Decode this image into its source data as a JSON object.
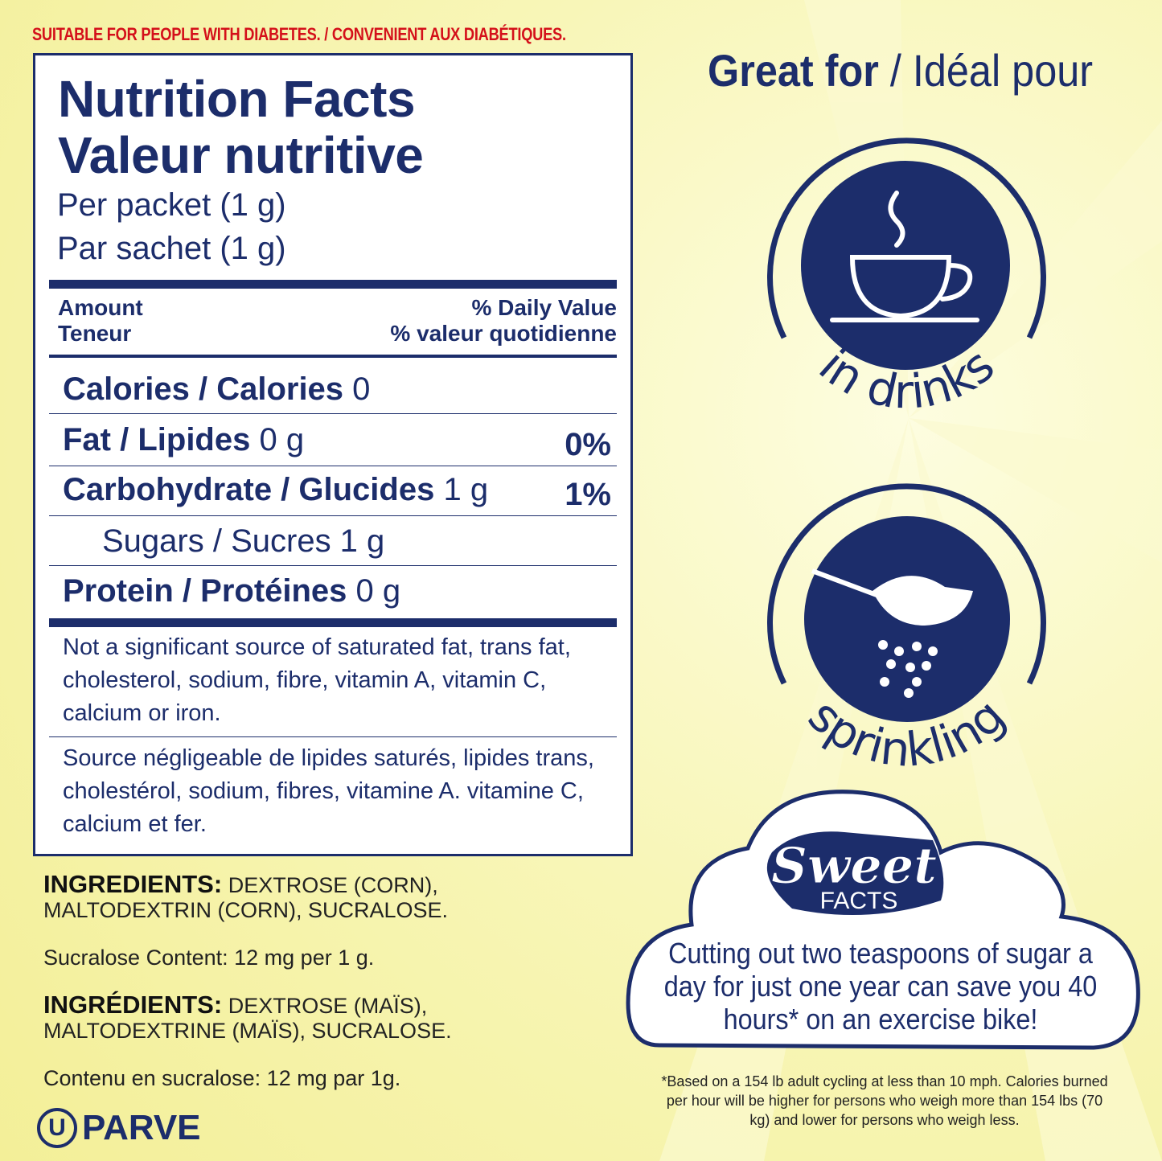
{
  "banner": "SUITABLE FOR PEOPLE WITH DIABETES. / CONVENIENT AUX DIABÉTIQUES.",
  "label": {
    "title_en": "Nutrition Facts",
    "title_fr": "Valeur nutritive",
    "serving_en": "Per packet (1 g)",
    "serving_fr": "Par sachet (1 g)",
    "amount_en": "Amount",
    "amount_fr": "Teneur",
    "dv_en": "% Daily Value",
    "dv_fr": "% valeur quotidienne",
    "rows": [
      {
        "name": "Calories / Calories",
        "amount": "0",
        "dv": ""
      },
      {
        "name": "Fat / Lipides",
        "amount": "0 g",
        "dv": "0%"
      },
      {
        "name": "Carbohydrate / Glucides",
        "amount": "1 g",
        "dv": "1%"
      },
      {
        "name": "Sugars / Sucres 1 g",
        "amount": "",
        "dv": ""
      },
      {
        "name": "Protein / Protéines",
        "amount": "0 g",
        "dv": ""
      }
    ],
    "footnote_en": "Not a significant source of saturated fat, trans fat, cholesterol, sodium, fibre, vitamin A, vitamin C, calcium or iron.",
    "footnote_fr": "Source négligeable de lipides saturés, lipides trans, cholestérol, sodium, fibres, vitamine A. vitamine C, calcium et fer."
  },
  "ingredients": {
    "label_en": "INGREDIENTS:",
    "text_en": "DEXTROSE (CORN), MALTODEXTRIN (CORN), SUCRALOSE.",
    "content_en": "Sucralose Content: 12 mg per 1 g.",
    "label_fr": "INGRÉDIENTS:",
    "text_fr": "DEXTROSE (MAÏS), MALTODEXTRINE (MAÏS), SUCRALOSE.",
    "content_fr": "Contenu en sucralose: 12 mg par 1g."
  },
  "parve": {
    "symbol": "U",
    "text": "PARVE"
  },
  "great_for": {
    "en": "Great for",
    "sep": " / ",
    "fr": "Idéal pour"
  },
  "uses": [
    {
      "label": "in drinks",
      "icon": "coffee-cup-icon"
    },
    {
      "label": "sprinkling",
      "icon": "spoon-sprinkle-icon"
    }
  ],
  "sweet_facts": {
    "logo_word": "Sweet",
    "logo_sub": "FACTS",
    "text": "Cutting out two teaspoons of sugar a day for just one year can save you 40 hours* on an exercise bike!"
  },
  "disclaimer": "*Based on a 154 lb adult cycling at less than 10 mph. Calories burned per hour will be higher for persons who weigh more than 154 lbs (70 kg) and lower for persons who weigh less.",
  "colors": {
    "navy": "#1c2d6b",
    "red": "#d4101a",
    "background": "#f5f2a6"
  }
}
